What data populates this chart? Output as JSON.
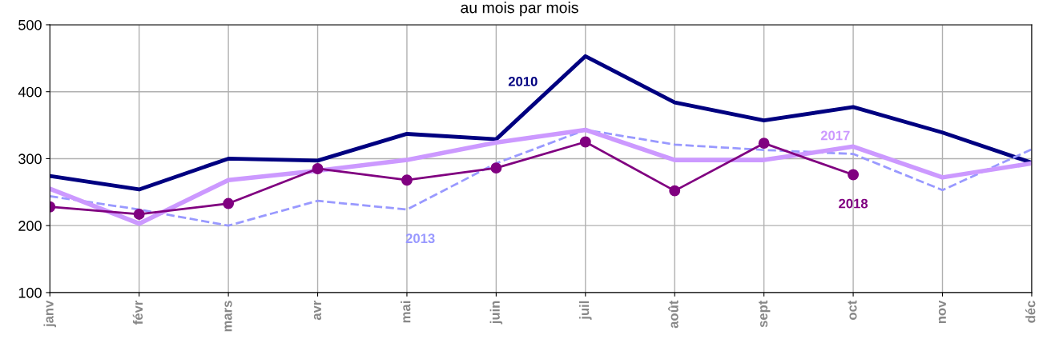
{
  "chart_data": {
    "type": "line",
    "title": "au mois par mois",
    "categories": [
      "janv",
      "févr",
      "mars",
      "avr",
      "mai",
      "juin",
      "juil",
      "août",
      "sept",
      "oct",
      "nov",
      "déc"
    ],
    "series": [
      {
        "name": "2010",
        "color": "#000080",
        "line_style": "solid",
        "marker": "none",
        "values": [
          274,
          254,
          300,
          297,
          337,
          329,
          453,
          384,
          357,
          377,
          339,
          294
        ]
      },
      {
        "name": "2013",
        "color": "#9999ff",
        "line_style": "dashed",
        "marker": "none",
        "values": [
          244,
          224,
          200,
          237,
          224,
          293,
          343,
          321,
          313,
          307,
          253,
          314
        ]
      },
      {
        "name": "2017",
        "color": "#cc99ff",
        "line_style": "solid",
        "marker": "none",
        "values": [
          255,
          203,
          268,
          282,
          298,
          324,
          343,
          298,
          298,
          318,
          272,
          293
        ]
      },
      {
        "name": "2018",
        "color": "#800080",
        "line_style": "solid",
        "marker": "circle",
        "values": [
          228,
          217,
          233,
          285,
          268,
          286,
          325,
          252,
          323,
          276,
          null,
          null
        ]
      }
    ],
    "ylim": [
      100,
      500
    ],
    "yticks": [
      100,
      200,
      300,
      400,
      500
    ],
    "grid": true,
    "legend": false
  }
}
